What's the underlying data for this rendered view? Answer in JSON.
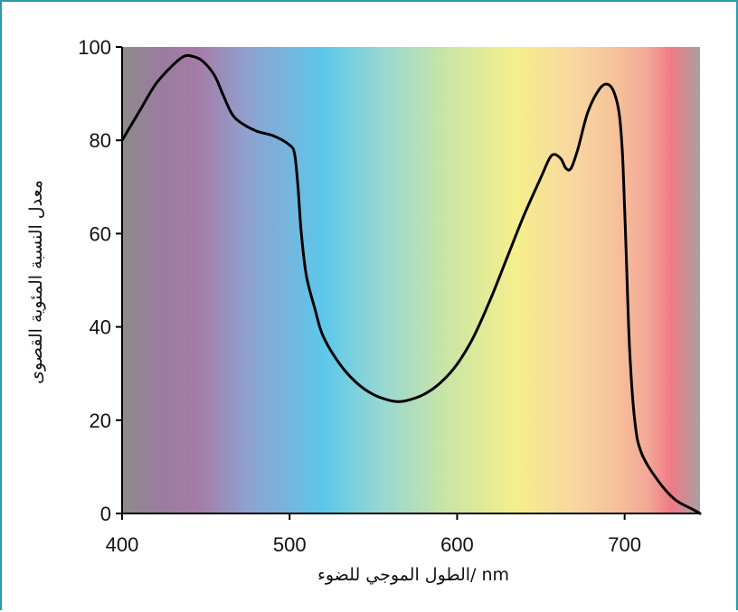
{
  "chart_data": {
    "type": "line",
    "title": "",
    "xlabel": "nm /الطول الموجي للضوء",
    "ylabel": "معدل النسبة المئوية القصوى",
    "xlim": [
      400,
      745
    ],
    "ylim": [
      0,
      100
    ],
    "x_ticks": [
      400,
      500,
      600,
      700
    ],
    "y_ticks": [
      0,
      20,
      40,
      60,
      80,
      100
    ],
    "background": "visible light spectrum gradient (violet → blue → cyan → green → yellow → orange → red)",
    "series": [
      {
        "x": [
          400,
          410,
          420,
          430,
          437,
          442,
          448,
          455,
          460,
          465,
          470,
          480,
          490,
          500,
          503,
          505,
          507,
          510,
          515,
          520,
          530,
          540,
          550,
          560,
          565,
          570,
          580,
          590,
          600,
          610,
          620,
          630,
          640,
          650,
          655,
          658,
          662,
          665,
          668,
          672,
          678,
          685,
          690,
          694,
          697,
          699,
          701,
          703,
          706,
          710,
          720,
          730,
          740,
          745
        ],
        "y": [
          80,
          86,
          92,
          96,
          98,
          98,
          97,
          94,
          90,
          86,
          84,
          82,
          81,
          79,
          77,
          70,
          60,
          51,
          44,
          38,
          32,
          28,
          25.5,
          24.2,
          24,
          24.2,
          25.5,
          28,
          32,
          38,
          46,
          55,
          64,
          72,
          76,
          77,
          76,
          74,
          74,
          78,
          86,
          91,
          92,
          90,
          85,
          75,
          55,
          35,
          20,
          13,
          7,
          3,
          1,
          0
        ]
      }
    ],
    "colors": {
      "frame": "#2a9aa5",
      "line": "#000000",
      "spectrum": [
        "#8e8a8c",
        "#9b7ca0",
        "#a57ba6",
        "#8fa2d1",
        "#5cc8ea",
        "#98d7d4",
        "#c9e5a5",
        "#f5ef8c",
        "#f8d7a0",
        "#f6c39a",
        "#f3a896",
        "#f07a86",
        "#a9a0a0"
      ]
    }
  }
}
